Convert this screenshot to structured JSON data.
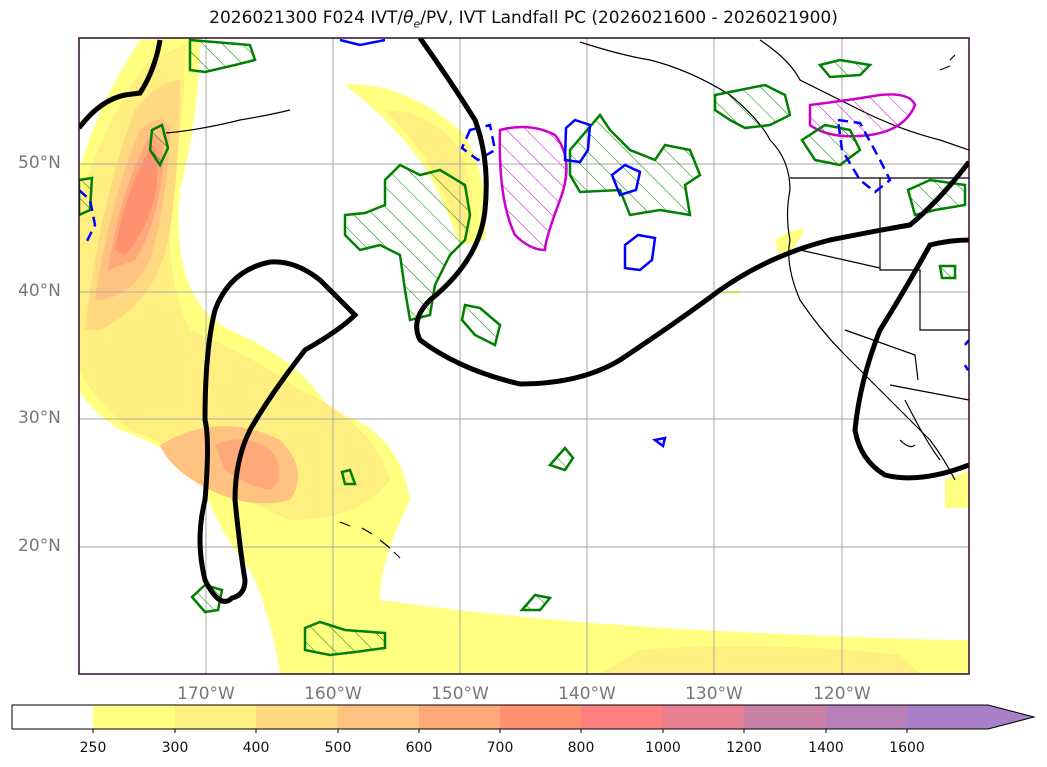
{
  "title": "2026021300 F024 IVT/θe/PV, IVT Landfall PC (2026021600 - 2026021900)",
  "title_parts": {
    "pre": "2026021300 F024 IVT/",
    "theta": "θ",
    "sub": "e",
    "post": "/PV, IVT Landfall PC (2026021600 - 2026021900)"
  },
  "map": {
    "lat_labels": [
      "50°N",
      "40°N",
      "30°N",
      "20°N"
    ],
    "lon_labels": [
      "170°W",
      "160°W",
      "150°W",
      "140°W",
      "130°W",
      "120°W"
    ]
  },
  "colorbar": {
    "levels": [
      "250",
      "300",
      "400",
      "500",
      "600",
      "700",
      "800",
      "1000",
      "1200",
      "1400",
      "1600"
    ],
    "colors": [
      "#ffffff",
      "#ffff80",
      "#ffee80",
      "#ffd980",
      "#ffc280",
      "#ffa87a",
      "#ff9070",
      "#ff7f7f",
      "#e87f90",
      "#c87fa8",
      "#b87fb8",
      "#a880c8"
    ]
  },
  "contour_colors": {
    "theta_e": "#000000",
    "pv_positive": "#008000",
    "pv_negative": "#0000ff",
    "landfall": "#cc00cc"
  }
}
